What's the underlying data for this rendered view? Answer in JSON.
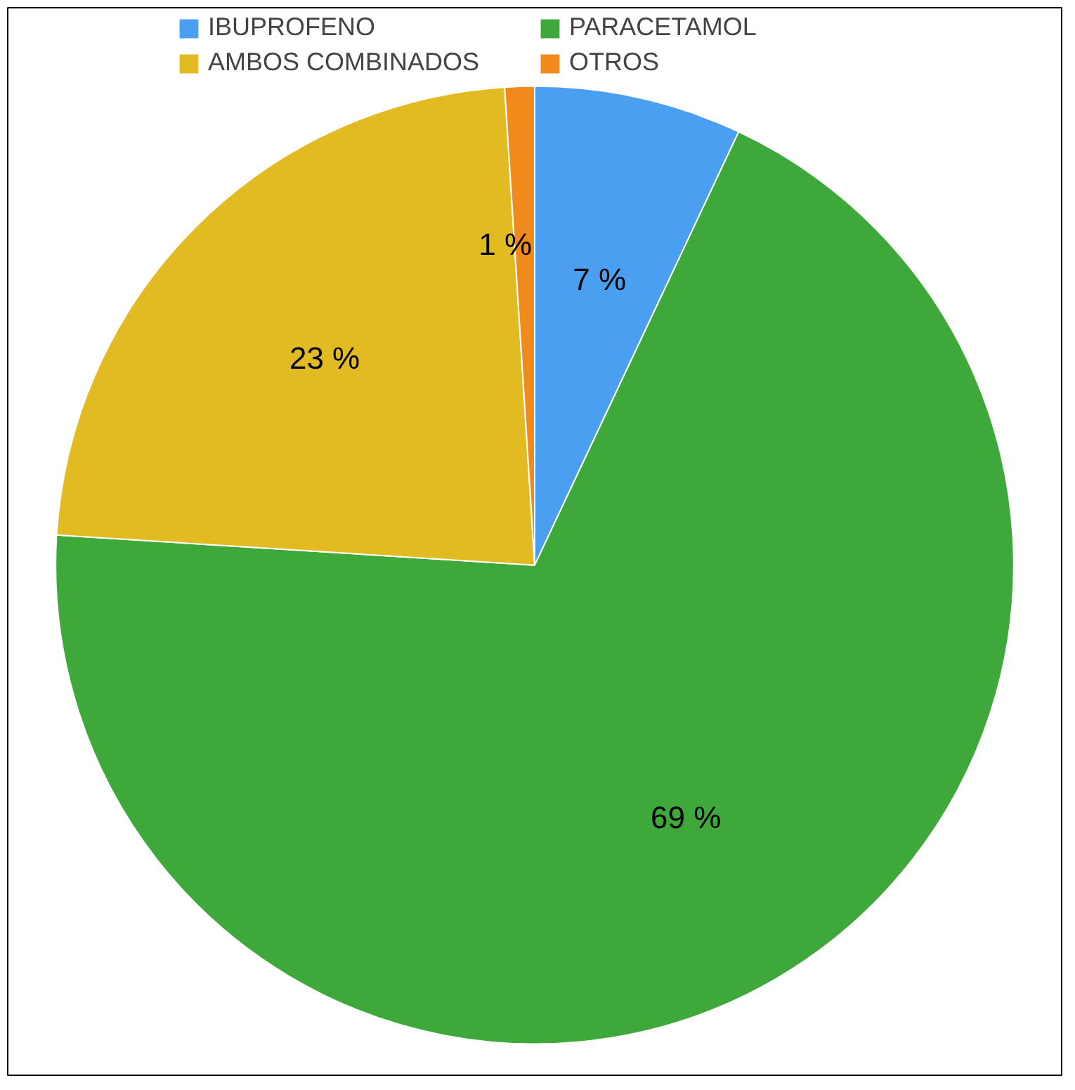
{
  "chart_data": {
    "type": "pie",
    "categories": [
      "IBUPROFENO",
      "PARACETAMOL",
      "AMBOS COMBINADOS",
      "OTROS"
    ],
    "values": [
      7,
      69,
      23,
      1
    ],
    "colors": [
      "#4a9ff0",
      "#3ea83a",
      "#e2bb22",
      "#f08a1a"
    ],
    "value_labels": [
      "7 %",
      "69 %",
      "23 %",
      "1 %"
    ],
    "legend": "top"
  }
}
